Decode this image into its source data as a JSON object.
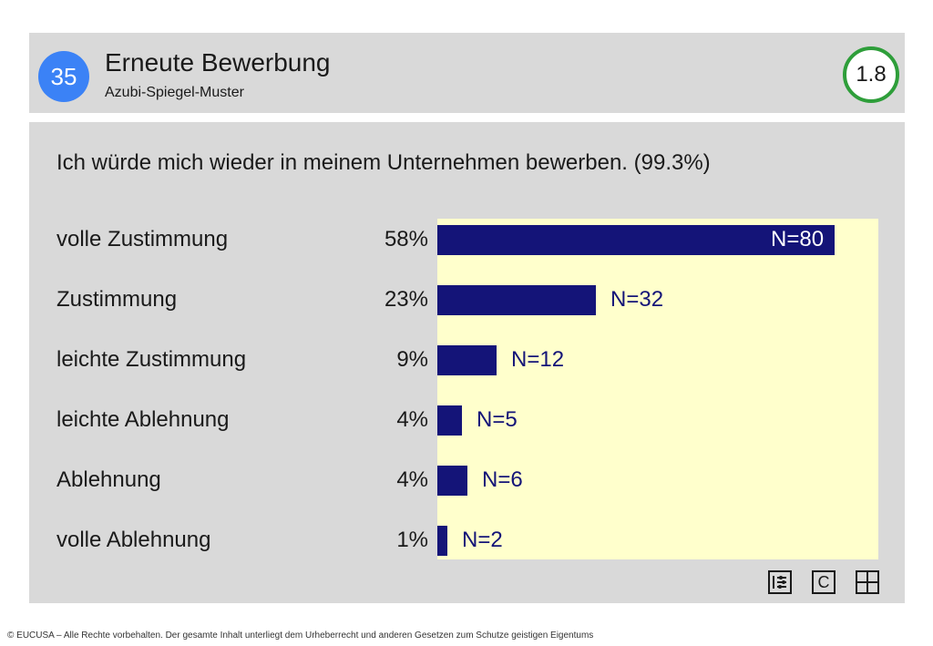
{
  "header": {
    "number": "35",
    "title": "Erneute Bewerbung",
    "subtitle": "Azubi-Spiegel-Muster",
    "score": "1.8"
  },
  "chart_data": {
    "type": "bar",
    "orientation": "horizontal",
    "title": "Ich würde mich wieder in meinem Unternehmen bewerben. (99.3%)",
    "categories": [
      "volle Zustimmung",
      "Zustimmung",
      "leichte Zustimmung",
      "leichte Ablehnung",
      "Ablehnung",
      "volle Ablehnung"
    ],
    "percent_labels": [
      "58%",
      "23%",
      "9%",
      "4%",
      "4%",
      "1%"
    ],
    "values": [
      80,
      32,
      12,
      5,
      6,
      2
    ],
    "n_labels": [
      "N=80",
      "N=32",
      "N=12",
      "N=5",
      "N=6",
      "N=2"
    ],
    "xlim": [
      0,
      80
    ],
    "grid": false,
    "colors": {
      "bar": "#141478",
      "plot_background": "#ffffcc",
      "panel": "#d9d9d9"
    }
  },
  "toolbar": {
    "icons": [
      "list-settings-icon",
      "c-icon",
      "grid-icon"
    ],
    "c_label": "C"
  },
  "footer": {
    "text": "© EUCUSA – Alle Rechte vorbehalten. Der gesamte Inhalt unterliegt dem Urheberrecht und anderen Gesetzen zum Schutze geistigen Eigentums"
  },
  "colors": {
    "number_badge": "#3b82f6",
    "score_ring": "#2e9e3a"
  }
}
